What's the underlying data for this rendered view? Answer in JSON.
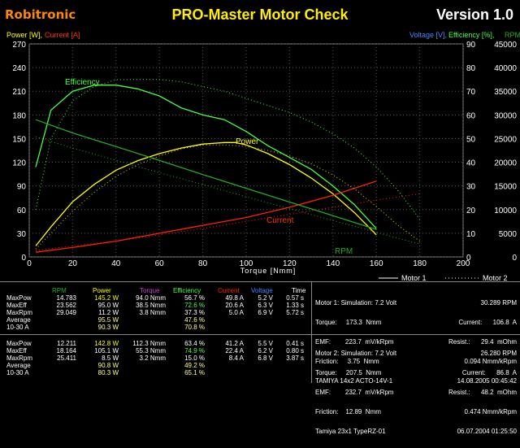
{
  "header": {
    "logo": "Robitronic",
    "title": "PRO-Master Motor Check",
    "version": "Version 1.0"
  },
  "chart_data": {
    "type": "line",
    "left_axis_label_power": "Power [W],",
    "left_axis_label_current": "Current [A]",
    "right_axis_label_voltage": "Voltage [V],",
    "right_axis_label_eff": "Efficiency [%],",
    "right_axis_label_rpm": "RPM",
    "xlabel": "Torque [Nmm]",
    "xlim": [
      0,
      200
    ],
    "ylim_left": [
      0,
      270
    ],
    "ylim_mid": [
      0,
      90
    ],
    "ylim_right": [
      0,
      45000
    ],
    "x_ticks": [
      "0",
      "20",
      "40",
      "60",
      "80",
      "100",
      "120",
      "140",
      "160",
      "180",
      "200"
    ],
    "y_left_ticks": [
      "0",
      "30",
      "60",
      "90",
      "120",
      "150",
      "180",
      "210",
      "240",
      "270"
    ],
    "y_mid_ticks": [
      "0",
      "10",
      "20",
      "30",
      "40",
      "50",
      "60",
      "70",
      "80",
      "90"
    ],
    "y_right_ticks": [
      "0",
      "5000",
      "10000",
      "15000",
      "20000",
      "25000",
      "30000",
      "35000",
      "40000",
      "45000"
    ],
    "legend": [
      "Motor 1",
      "Motor 2"
    ],
    "annotations": [
      "Efficiency",
      "Power",
      "Current",
      "RPM"
    ],
    "series": [
      {
        "name": "Power",
        "motor": 1,
        "axis": "left",
        "color": "#ffff00",
        "x": [
          3,
          10,
          20,
          30,
          40,
          50,
          60,
          70,
          80,
          90,
          95,
          100,
          110,
          120,
          130,
          140,
          150,
          160
        ],
        "y": [
          14,
          38,
          70,
          92,
          110,
          122,
          131,
          138,
          143,
          145,
          145,
          142,
          131,
          117,
          100,
          80,
          56,
          28
        ]
      },
      {
        "name": "Efficiency",
        "motor": 1,
        "axis": "mid",
        "color": "#44ff44",
        "x": [
          3,
          10,
          15,
          20,
          30,
          40,
          50,
          60,
          70,
          80,
          90,
          100,
          110,
          120,
          130,
          140,
          150,
          160
        ],
        "y": [
          38,
          62,
          66,
          70,
          72.6,
          72.6,
          71,
          68,
          63,
          60,
          58,
          53,
          47,
          42,
          37,
          30,
          22,
          12
        ]
      },
      {
        "name": "Current",
        "motor": 1,
        "axis": "left",
        "color": "#ff2200",
        "x": [
          3,
          20,
          40,
          60,
          80,
          100,
          120,
          140,
          160
        ],
        "y": [
          6,
          12,
          20,
          30,
          40,
          50,
          63,
          78,
          96
        ]
      },
      {
        "name": "RPM",
        "motor": 1,
        "axis": "right",
        "color": "#22aa22",
        "x": [
          3,
          20,
          40,
          60,
          80,
          100,
          120,
          140,
          160
        ],
        "y": [
          29000,
          26200,
          23300,
          20400,
          17400,
          14500,
          11600,
          8700,
          5800
        ]
      },
      {
        "name": "Power",
        "motor": 2,
        "axis": "left",
        "color": "#dddd00",
        "x": [
          3,
          10,
          20,
          30,
          40,
          50,
          60,
          70,
          80,
          90,
          100,
          110,
          120,
          130,
          140,
          150,
          160,
          170,
          180
        ],
        "y": [
          10,
          30,
          58,
          82,
          102,
          117,
          128,
          137,
          142,
          142,
          140,
          135,
          128,
          118,
          104,
          86,
          64,
          40,
          20
        ]
      },
      {
        "name": "Efficiency",
        "motor": 2,
        "axis": "mid",
        "color": "#44ff44",
        "x": [
          3,
          10,
          20,
          30,
          40,
          50,
          60,
          70,
          80,
          90,
          100,
          110,
          120,
          130,
          140,
          150,
          160,
          170,
          180
        ],
        "y": [
          20,
          50,
          66,
          72,
          74.9,
          75,
          75,
          74,
          72,
          70,
          67,
          64,
          61,
          57,
          52,
          46,
          38,
          28,
          16
        ]
      },
      {
        "name": "Current",
        "motor": 2,
        "axis": "left",
        "color": "#ff2200",
        "x": [
          3,
          20,
          40,
          60,
          80,
          100,
          120,
          140,
          160,
          180
        ],
        "y": [
          8,
          14,
          20,
          28,
          36,
          45,
          54,
          63,
          72,
          80
        ]
      },
      {
        "name": "RPM",
        "motor": 2,
        "axis": "right",
        "color": "#22aa22",
        "x": [
          3,
          20,
          40,
          60,
          80,
          100,
          120,
          140,
          160,
          180
        ],
        "y": [
          25400,
          23000,
          20400,
          17800,
          15300,
          12700,
          10200,
          7700,
          5200,
          2700
        ]
      }
    ]
  },
  "table": {
    "headers": [
      "RPM",
      "Power",
      "Torque",
      "Efficiency",
      "Current",
      "Voltage",
      "Time"
    ],
    "header_colors": [
      "#22aa22",
      "#ffff00",
      "#cc44cc",
      "#44ff44",
      "#ff2200",
      "#4488ff",
      "#ffffff"
    ],
    "motor1_rows": [
      {
        "label": "MaxPow",
        "rpm": "14.783",
        "power": "145.2 W",
        "torque": "94.0 Nmm",
        "eff": "56.7 %",
        "current": "49.8 A",
        "voltage": "5.2 V",
        "time": "0.57 s"
      },
      {
        "label": "MaxEff",
        "rpm": "23.562",
        "power": "95.0 W",
        "torque": "38.5 Nmm",
        "eff": "72.6 %",
        "current": "20.6 A",
        "voltage": "6.3 V",
        "time": "1.33 s"
      },
      {
        "label": "MaxRpm",
        "rpm": "29.049",
        "power": "11.2 W",
        "torque": "3.8 Nmm",
        "eff": "37.3 %",
        "current": "5.0 A",
        "voltage": "6.9 V",
        "time": "5.72 s"
      },
      {
        "label": "Average",
        "rpm": "",
        "power": "95.5 W",
        "torque": "",
        "eff": "47.6 %",
        "current": "",
        "voltage": "",
        "time": ""
      },
      {
        "label": "10-30 A",
        "rpm": "",
        "power": "90.3 W",
        "torque": "",
        "eff": "70.8 %",
        "current": "",
        "voltage": "",
        "time": ""
      }
    ],
    "motor2_rows": [
      {
        "label": "MaxPow",
        "rpm": "12.211",
        "power": "142.8 W",
        "torque": "112.3 Nmm",
        "eff": "63.4 %",
        "current": "41.2 A",
        "voltage": "5.5 V",
        "time": "0.41 s"
      },
      {
        "label": "MaxEff",
        "rpm": "18.164",
        "power": "105.1 W",
        "torque": "55.3 Nmm",
        "eff": "74.9 %",
        "current": "22.4 A",
        "voltage": "6.2 V",
        "time": "0.80 s"
      },
      {
        "label": "MaxRpm",
        "rpm": "25.411",
        "power": "8.5 W",
        "torque": "3.2 Nmm",
        "eff": "15.0 %",
        "current": "8.4 A",
        "voltage": "6.8 V",
        "time": "3.87 s"
      },
      {
        "label": "Average",
        "rpm": "",
        "power": "90.8 W",
        "torque": "",
        "eff": "49.2 %",
        "current": "",
        "voltage": "",
        "time": ""
      },
      {
        "label": "10-30 A",
        "rpm": "",
        "power": "80.3 W",
        "torque": "",
        "eff": "65.1 %",
        "current": "",
        "voltage": "",
        "time": ""
      }
    ]
  },
  "motor1_info": {
    "line1": "Motor 1: Simulation: 7.2 Volt",
    "rpm_val": "30.289 RPM",
    "torque": "Torque:     173.3  Nmm",
    "current": "Current:      106.8  A",
    "emf": "EMF:        223.7  mV/kRpm",
    "resist": "Resist.:      29.4  mOhm",
    "friction": "Friction:     3.75  Nmm",
    "friction2": "0.094 Nmm/kRpm",
    "name": "TAMIYA 14x2 ACTO-14V-1",
    "date": "14.08.2005 00:45:42"
  },
  "motor2_info": {
    "line1": "Motor 2: Simulation: 7.2 Volt",
    "rpm_val": "26.280 RPM",
    "torque": "Torque:     207.5  Nmm",
    "current": "Current:      86.8  A",
    "emf": "EMF:        232.7  mV/kRpm",
    "resist": "Resist.:      48.2  mOhm",
    "friction": "Friction:    12.89  Nmm",
    "friction2": "0.474 Nmm/kRpm",
    "name": "Tamiya 23x1 TypeRZ-01",
    "date": "06.07.2004 01:25:50"
  }
}
